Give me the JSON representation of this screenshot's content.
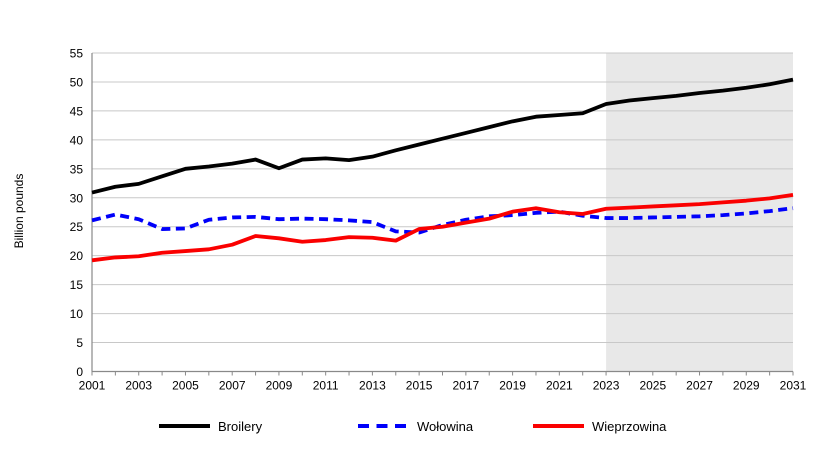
{
  "chart_data": {
    "type": "line",
    "title": "",
    "xlabel": "",
    "ylabel": "Billion pounds",
    "ylim": [
      0,
      55
    ],
    "y_tick_step": 5,
    "grid": "horizontal",
    "legend_position": "bottom",
    "x": [
      2001,
      2002,
      2003,
      2004,
      2005,
      2006,
      2007,
      2008,
      2009,
      2010,
      2011,
      2012,
      2013,
      2014,
      2015,
      2016,
      2017,
      2018,
      2019,
      2020,
      2021,
      2022,
      2023,
      2024,
      2025,
      2026,
      2027,
      2028,
      2029,
      2030,
      2031
    ],
    "x_tick_labels": [
      "2001",
      "2003",
      "2005",
      "2007",
      "2009",
      "2011",
      "2013",
      "2015",
      "2017",
      "2019",
      "2021",
      "2023",
      "2025",
      "2027",
      "2029",
      "2031"
    ],
    "forecast_shading": {
      "start": 2023,
      "end": 2031,
      "color": "#e8e8e8"
    },
    "colors": {
      "gridline": "#c8c8c8",
      "axis": "#898989",
      "text": "#000000"
    },
    "series": [
      {
        "name": "Broilery",
        "color": "#000000",
        "style": "solid",
        "values": [
          30.9,
          31.9,
          32.4,
          33.7,
          35.0,
          35.4,
          35.9,
          36.6,
          35.1,
          36.6,
          36.8,
          36.5,
          37.1,
          38.2,
          39.2,
          40.2,
          41.2,
          42.2,
          43.2,
          44.0,
          44.3,
          44.6,
          46.2,
          46.8,
          47.2,
          47.6,
          48.1,
          48.5,
          49.0,
          49.6,
          50.4
        ]
      },
      {
        "name": "Wołowina",
        "color": "#0000fa",
        "style": "dashed",
        "values": [
          26.1,
          27.1,
          26.3,
          24.6,
          24.7,
          26.2,
          26.6,
          26.7,
          26.3,
          26.4,
          26.3,
          26.1,
          25.8,
          24.2,
          24.0,
          25.3,
          26.2,
          26.8,
          27.0,
          27.4,
          27.6,
          26.9,
          26.5,
          26.5,
          26.6,
          26.7,
          26.8,
          27.0,
          27.3,
          27.7,
          28.2
        ]
      },
      {
        "name": "Wieprzowina",
        "color": "#fa0000",
        "style": "solid",
        "values": [
          19.2,
          19.7,
          19.9,
          20.5,
          20.8,
          21.1,
          21.9,
          23.4,
          23.0,
          22.4,
          22.7,
          23.2,
          23.1,
          22.6,
          24.6,
          25.0,
          25.7,
          26.4,
          27.6,
          28.2,
          27.5,
          27.2,
          28.1,
          28.3,
          28.5,
          28.7,
          28.9,
          29.2,
          29.5,
          29.9,
          30.5
        ]
      }
    ]
  }
}
